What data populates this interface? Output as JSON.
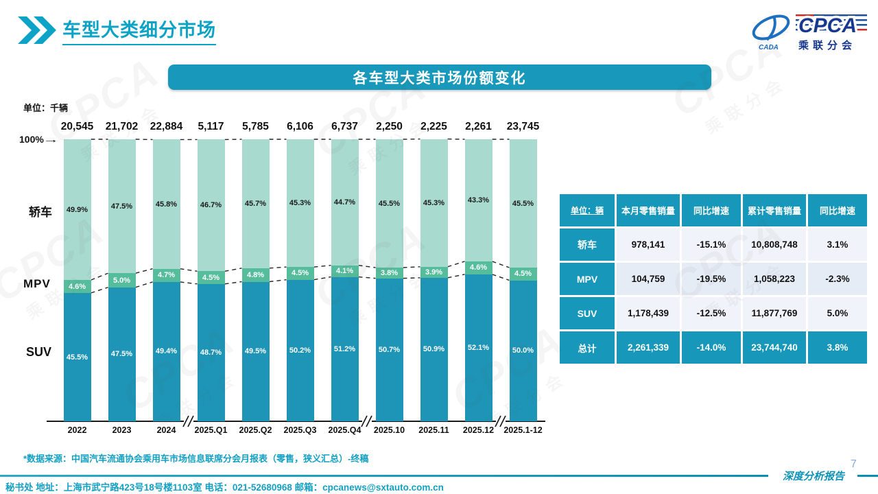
{
  "header": {
    "title": "车型大类细分市场"
  },
  "logo": {
    "cpca": "CPCA",
    "sub": "乘联分会",
    "cada": "CADA"
  },
  "banner": {
    "title": "各车型大类市场份额变化"
  },
  "chart": {
    "unit_label": "单位：千辆",
    "axis_top_label": "100%",
    "series_labels": {
      "sedan": "轿车",
      "mpv": "MPV",
      "suv": "SUV"
    }
  },
  "chart_data": {
    "type": "bar",
    "stacked": true,
    "unit": "%",
    "title": "各车型大类市场份额变化",
    "categories": [
      "2022",
      "2023",
      "2024",
      "2025.Q1",
      "2025.Q2",
      "2025.Q3",
      "2025.Q4",
      "2025.10",
      "2025.11",
      "2025.12",
      "2025.1-12"
    ],
    "totals": [
      "20,545",
      "21,702",
      "22,884",
      "5,117",
      "5,785",
      "6,106",
      "6,737",
      "2,250",
      "2,225",
      "2,261",
      "23,745"
    ],
    "totals_unit": "千辆",
    "series": [
      {
        "key": "suv",
        "name": "SUV",
        "color": "#1e95b7",
        "label_color": "#ffffff",
        "values": [
          45.5,
          47.5,
          49.4,
          48.7,
          49.5,
          50.2,
          51.2,
          50.7,
          50.9,
          52.1,
          50.0
        ]
      },
      {
        "key": "mpv",
        "name": "MPV",
        "color": "#55bd9b",
        "label_color": "#ffffff",
        "values": [
          4.6,
          5.0,
          4.7,
          4.5,
          4.8,
          4.5,
          4.1,
          3.8,
          3.9,
          4.6,
          4.5
        ]
      },
      {
        "key": "sedan",
        "name": "轿车",
        "color": "#a9dad0",
        "label_color": "#1a1a1a",
        "values": [
          49.9,
          47.5,
          45.8,
          46.7,
          45.7,
          45.3,
          44.7,
          45.5,
          45.3,
          43.3,
          45.5
        ]
      }
    ],
    "ylim": [
      0,
      100
    ],
    "grid": false,
    "legend_position": "left-of-bars",
    "breaks_after": [
      2,
      6,
      9
    ]
  },
  "table": {
    "unit_header": "单位：辆",
    "columns": [
      "本月零售销量",
      "同比增速",
      "累计零售销量",
      "同比增速"
    ],
    "rows": [
      {
        "label": "轿车",
        "values": [
          "978,141",
          "-15.1%",
          "10,808,748",
          "3.1%"
        ]
      },
      {
        "label": "MPV",
        "values": [
          "104,759",
          "-19.5%",
          "1,058,223",
          "-2.3%"
        ]
      },
      {
        "label": "SUV",
        "values": [
          "1,178,439",
          "-12.5%",
          "11,877,769",
          "5.0%"
        ]
      }
    ],
    "total_row": {
      "label": "总计",
      "values": [
        "2,261,339",
        "-14.0%",
        "23,744,740",
        "3.8%"
      ]
    }
  },
  "footnote": "*数据来源：中国汽车流通协会乘用车市场信息联席分会月报表（零售，狭义汇总）-终稿",
  "footer": {
    "secretariat": "秘书处  地址：上海市武宁路423号18号楼1103室 电话：021-52680968   邮箱：cpcanews@sxtauto.com.cn",
    "report_label": "深度分析报告",
    "page_number": "7"
  },
  "colors": {
    "accent": "#1898ba",
    "title": "#0da3c6",
    "suv": "#1e95b7",
    "mpv": "#55bd9b",
    "sedan": "#a9dad0",
    "table_header": "#1797b9",
    "row_light": "#f0f4fa",
    "row_alt": "#e6ecf6",
    "footer_text": "#14a0c2",
    "logo_blue": "#16388e",
    "page_number": "#85a8d8"
  }
}
